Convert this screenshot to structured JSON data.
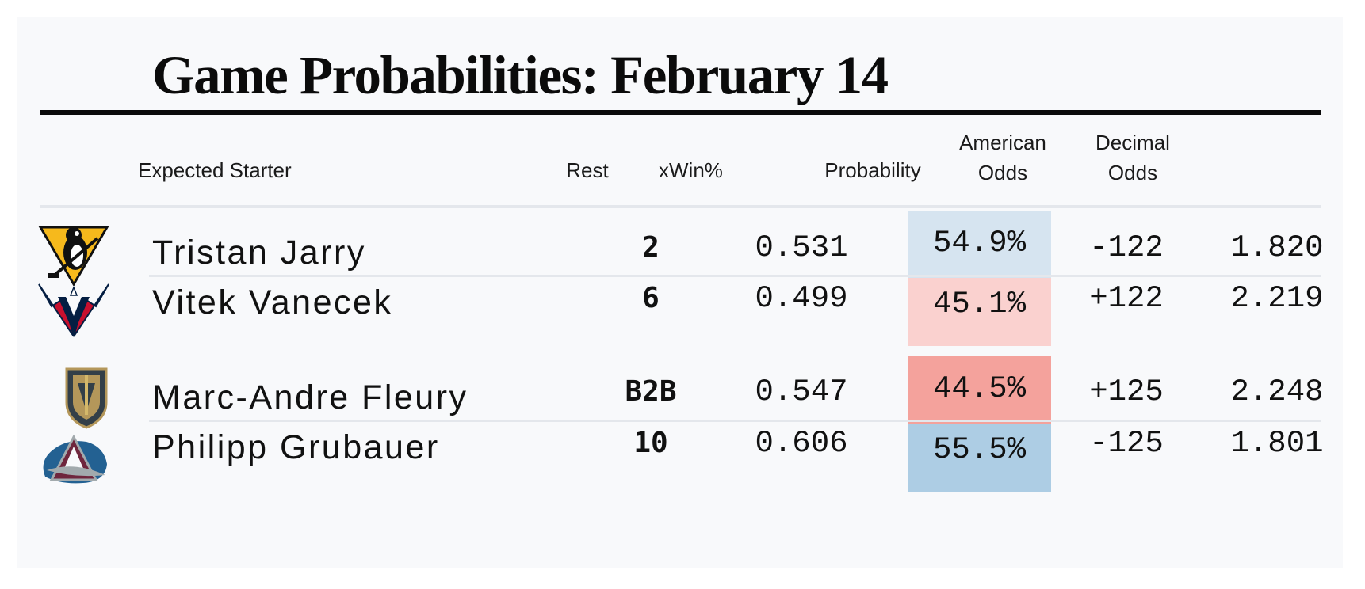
{
  "title": "Game Probabilities: February 14",
  "headers": {
    "starter": "Expected Starter",
    "rest": "Rest",
    "xwin": "xWin%",
    "probability": "Probability",
    "american_l1": "American",
    "american_l2": "Odds",
    "decimal_l1": "Decimal",
    "decimal_l2": "Odds"
  },
  "colors": {
    "prob_light_blue": "#d6e4f0",
    "prob_light_red": "#fad1cf",
    "prob_red": "#f4a29c",
    "prob_blue": "#adcde4"
  },
  "games": [
    {
      "rows": [
        {
          "team_logo": "penguins-logo-icon",
          "starter": "Tristan Jarry",
          "rest": "2",
          "xwin": "0.531",
          "probability": "54.9%",
          "probability_value": 54.9,
          "prob_color": "#d6e4f0",
          "american_odds": "-122",
          "decimal_odds": "1.820"
        },
        {
          "team_logo": "capitals-logo-icon",
          "starter": "Vitek Vanecek",
          "rest": "6",
          "xwin": "0.499",
          "probability": "45.1%",
          "probability_value": 45.1,
          "prob_color": "#fad1cf",
          "american_odds": "+122",
          "decimal_odds": "2.219"
        }
      ]
    },
    {
      "rows": [
        {
          "team_logo": "golden-knights-logo-icon",
          "starter": "Marc-Andre Fleury",
          "rest": "B2B",
          "xwin": "0.547",
          "probability": "44.5%",
          "probability_value": 44.5,
          "prob_color": "#f4a29c",
          "american_odds": "+125",
          "decimal_odds": "2.248"
        },
        {
          "team_logo": "avalanche-logo-icon",
          "starter": "Philipp Grubauer",
          "rest": "10",
          "xwin": "0.606",
          "probability": "55.5%",
          "probability_value": 55.5,
          "prob_color": "#adcde4",
          "american_odds": "-125",
          "decimal_odds": "1.801"
        }
      ]
    }
  ]
}
